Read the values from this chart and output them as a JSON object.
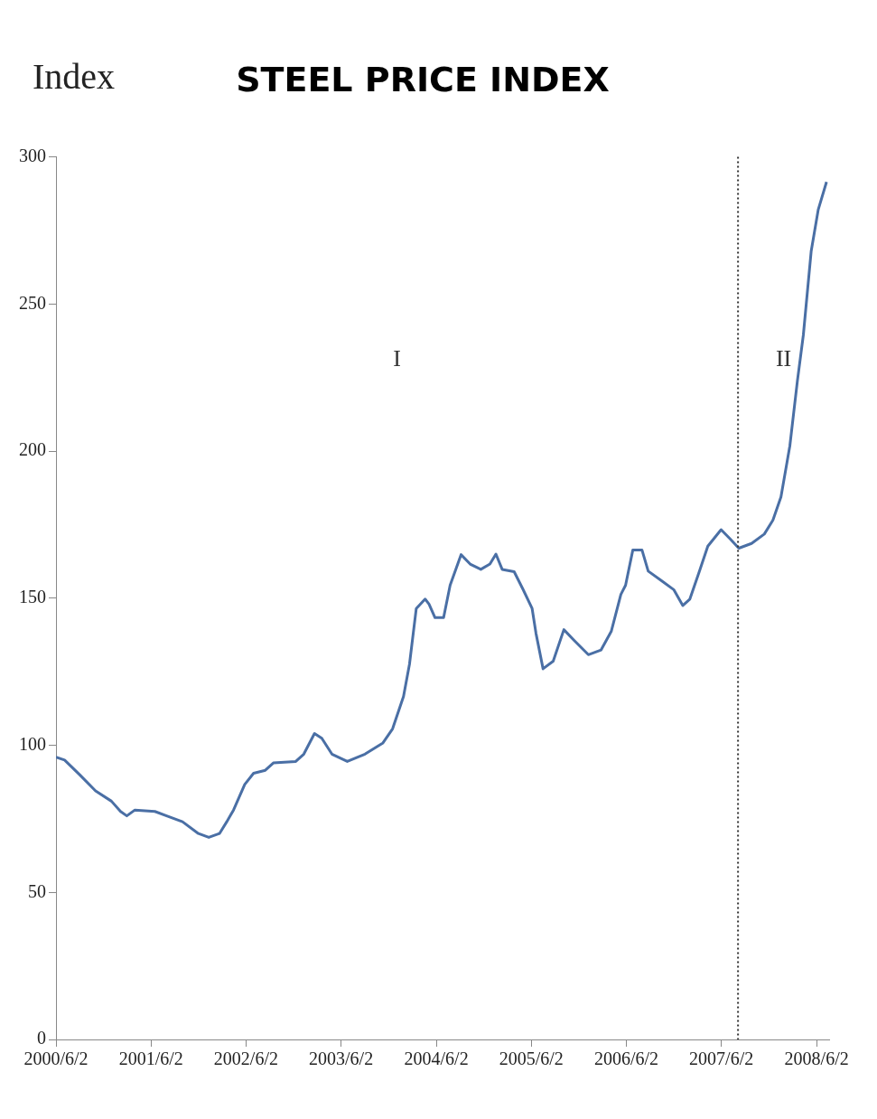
{
  "chart_data": {
    "type": "line",
    "title": "STEEL PRICE INDEX",
    "ylabel": "Index",
    "x": [
      "2000-06-02",
      "2000-07-05",
      "2000-09-01",
      "2000-11-01",
      "2001-01-01",
      "2001-02-05",
      "2001-03-01",
      "2001-04-01",
      "2001-06-17",
      "2001-08-01",
      "2001-10-01",
      "2001-12-01",
      "2002-01-10",
      "2002-02-20",
      "2002-03-20",
      "2002-04-15",
      "2002-05-28",
      "2002-07-01",
      "2002-08-15",
      "2002-09-15",
      "2002-12-10",
      "2003-01-10",
      "2003-02-20",
      "2003-03-20",
      "2003-04-28",
      "2003-06-26",
      "2003-09-02",
      "2003-11-10",
      "2003-12-17",
      "2004-01-28",
      "2004-02-20",
      "2004-03-17",
      "2004-04-20",
      "2004-05-05",
      "2004-05-28",
      "2004-06-30",
      "2004-07-25",
      "2004-09-05",
      "2004-10-10",
      "2004-11-20",
      "2004-12-25",
      "2005-01-17",
      "2005-02-10",
      "2005-03-28",
      "2005-05-01",
      "2005-06-05",
      "2005-06-20",
      "2005-07-17",
      "2005-08-25",
      "2005-10-05",
      "2005-11-15",
      "2006-01-07",
      "2006-02-25",
      "2006-04-05",
      "2006-05-12",
      "2006-05-30",
      "2006-06-27",
      "2006-08-01",
      "2006-08-25",
      "2006-10-14",
      "2006-12-01",
      "2007-01-05",
      "2007-02-01",
      "2007-03-10",
      "2007-04-11",
      "2007-06-01",
      "2007-07-05",
      "2007-08-08",
      "2007-09-26",
      "2007-11-14",
      "2007-12-17",
      "2008-01-17",
      "2008-02-20",
      "2008-03-20",
      "2008-04-12",
      "2008-05-12",
      "2008-06-08",
      "2008-07-10"
    ],
    "series": [
      {
        "color": "#4a6fa5",
        "values": [
          96,
          95,
          90,
          84.5,
          81,
          77.5,
          76,
          78,
          77.5,
          76,
          74,
          70,
          68.7,
          70,
          74,
          78,
          86.7,
          90.5,
          91.5,
          94,
          94.5,
          97,
          104,
          102.4,
          97,
          94.5,
          97,
          100.8,
          105.6,
          116.6,
          127.6,
          146.5,
          149.7,
          148,
          143.4,
          143.4,
          154.4,
          164.8,
          161.6,
          159.8,
          161.6,
          165,
          159.8,
          159,
          153,
          146.5,
          138,
          126,
          128.6,
          139.3,
          135.5,
          130.8,
          132.4,
          138.7,
          151.3,
          154.4,
          166.4,
          166.4,
          159.2,
          156,
          152.9,
          147.5,
          149.7,
          159.2,
          167.7,
          173.3,
          170.2,
          167,
          168.6,
          171.8,
          176.5,
          184.4,
          201.7,
          223.8,
          239.5,
          267.9,
          282,
          291.5
        ]
      }
    ],
    "xlim": [
      "2000-06-02",
      "2008-07-20"
    ],
    "xticks": [
      {
        "value": "2000-06-02",
        "label": "2000/6/2"
      },
      {
        "value": "2001-06-02",
        "label": "2001/6/2"
      },
      {
        "value": "2002-06-02",
        "label": "2002/6/2"
      },
      {
        "value": "2003-06-02",
        "label": "2003/6/2"
      },
      {
        "value": "2004-06-02",
        "label": "2004/6/2"
      },
      {
        "value": "2005-06-02",
        "label": "2005/6/2"
      },
      {
        "value": "2006-06-02",
        "label": "2006/6/2"
      },
      {
        "value": "2007-06-02",
        "label": "2007/6/2"
      },
      {
        "value": "2008-06-02",
        "label": "2008/6/2"
      }
    ],
    "ylim": [
      0,
      300
    ],
    "yticks": [
      0,
      50,
      100,
      150,
      200,
      250,
      300
    ],
    "ref_lines": [
      {
        "axis": "x",
        "value": "2007-08-05",
        "color": "#333333",
        "line_style": "dotted"
      }
    ],
    "annotations": [
      "I",
      "II"
    ],
    "grid": false,
    "legend": false,
    "marker": "none",
    "line_style": "solid"
  }
}
